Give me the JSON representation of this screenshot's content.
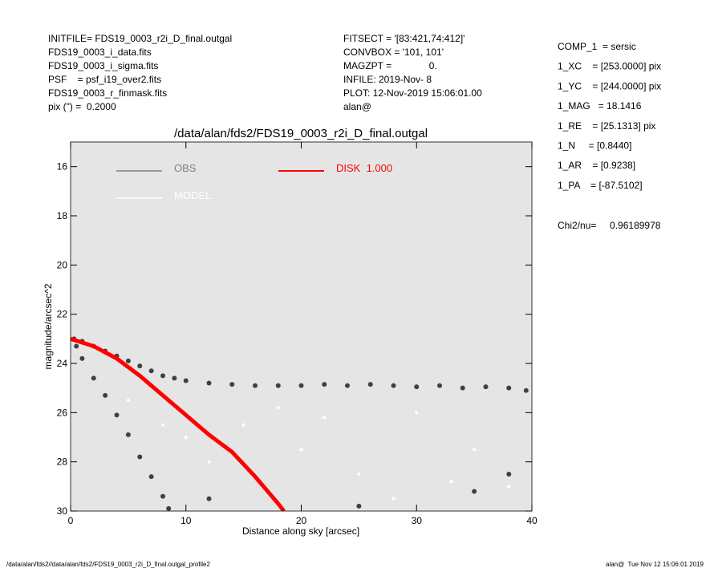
{
  "header": {
    "left": [
      "INITFILE= FDS19_0003_r2i_D_final.outgal",
      "FDS19_0003_i_data.fits",
      "FDS19_0003_i_sigma.fits",
      "PSF    = psf_i19_over2.fits",
      "FDS19_0003_r_finmask.fits",
      "pix (\") =  0.2000"
    ],
    "middle": [
      "FITSECT = '[83:421,74:412]'",
      "CONVBOX = '101, 101'",
      "MAGZPT =              0.",
      "INFILE: 2019-Nov- 8",
      "PLOT: 12-Nov-2019 15:06:01.00",
      "alan@"
    ],
    "right": [
      "COMP_1  = sersic",
      "1_XC    = [253.0000] pix",
      "1_YC    = [244.0000] pix",
      "1_MAG   = 18.1416",
      "1_RE    = [25.1313] pix",
      "1_N     = [0.8440]",
      "1_AR    = [0.9238]",
      "1_PA    = [-87.5102]"
    ],
    "chi2": "Chi2/nu=     0.96189978"
  },
  "footer": {
    "left": "/data/alan/fds2//data/alan/fds2/FDS19_0003_r2i_D_final.outgal_profile2",
    "right": "alan@  Tue Nov 12 15:06:01 2019"
  },
  "chart_data": {
    "type": "scatter",
    "title": "/data/alan/fds2/FDS19_0003_r2i_D_final.outgal",
    "x_label": "Distance along sky [arcsec]",
    "y_label": "magnitude/arcsec^2",
    "xlim": [
      0,
      40
    ],
    "xticks": [
      0,
      10,
      20,
      30,
      40
    ],
    "ylim": [
      15,
      30
    ],
    "y_inverted": true,
    "yticks": [
      16,
      18,
      20,
      22,
      24,
      26,
      28,
      30
    ],
    "background": "#e5e5e5",
    "series": [
      {
        "name": "OBS",
        "color": "#404040",
        "legend_color": "#808080",
        "style": "points",
        "x": [
          0.3,
          1,
          2,
          3,
          4,
          5,
          6,
          7,
          8,
          9,
          10,
          12,
          14,
          16,
          18,
          20,
          22,
          24,
          26,
          28,
          30,
          32,
          34,
          36,
          38,
          39.5,
          0.5,
          1,
          2,
          3,
          4,
          5,
          6,
          7,
          8,
          8.5,
          12,
          25,
          35,
          38
        ],
        "values": [
          23.0,
          23.1,
          23.3,
          23.5,
          23.7,
          23.9,
          24.1,
          24.3,
          24.5,
          24.6,
          24.7,
          24.8,
          24.85,
          24.9,
          24.9,
          24.9,
          24.85,
          24.9,
          24.85,
          24.9,
          24.95,
          24.9,
          25.0,
          24.95,
          25.0,
          25.1,
          23.3,
          23.8,
          24.6,
          25.3,
          26.1,
          26.9,
          27.8,
          28.6,
          29.4,
          29.9,
          29.5,
          29.8,
          29.2,
          28.5
        ]
      },
      {
        "name": "MODEL",
        "color": "#ffffff",
        "style": "points",
        "x": [
          5,
          10,
          12,
          15,
          20,
          25,
          30,
          35,
          38,
          18,
          28,
          8,
          33,
          22
        ],
        "values": [
          25.5,
          27,
          28,
          26.5,
          27.5,
          28.5,
          26,
          27.5,
          29,
          25.8,
          29.5,
          26.5,
          28.8,
          26.2
        ]
      },
      {
        "name": "DISK  1.000",
        "color": "#ff0000",
        "style": "line",
        "x": [
          0,
          2,
          4,
          6,
          8,
          10,
          12,
          14,
          16,
          18,
          18.5
        ],
        "values": [
          23.0,
          23.3,
          23.8,
          24.5,
          25.3,
          26.1,
          26.9,
          27.6,
          28.6,
          29.7,
          30
        ]
      }
    ]
  }
}
